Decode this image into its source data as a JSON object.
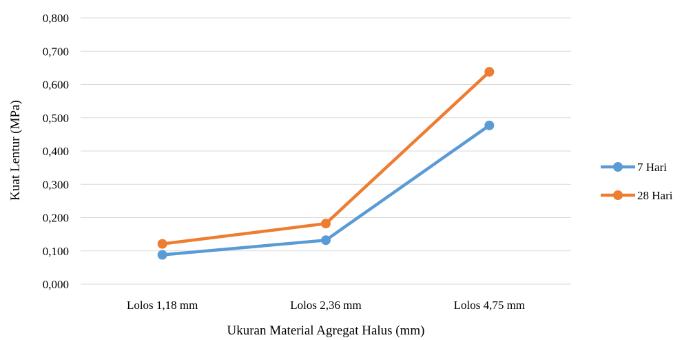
{
  "chart_data": {
    "type": "line",
    "categories": [
      "Lolos 1,18 mm",
      "Lolos 2,36 mm",
      "Lolos 4,75 mm"
    ],
    "series": [
      {
        "name": "7 Hari",
        "values": [
          0.088,
          0.132,
          0.477
        ],
        "color": "#5b9bd5"
      },
      {
        "name": "28 Hari",
        "values": [
          0.121,
          0.182,
          0.638
        ],
        "color": "#ed7d31"
      }
    ],
    "yticks": [
      "0,000",
      "0,100",
      "0,200",
      "0,300",
      "0,400",
      "0,500",
      "0,600",
      "0,700",
      "0,800"
    ],
    "ylim": [
      0,
      0.8
    ],
    "xlabel": "Ukuran Material Agregat Halus (mm)",
    "ylabel": "Kuat Lentur (MPa)",
    "grid": true,
    "legend": "right"
  }
}
